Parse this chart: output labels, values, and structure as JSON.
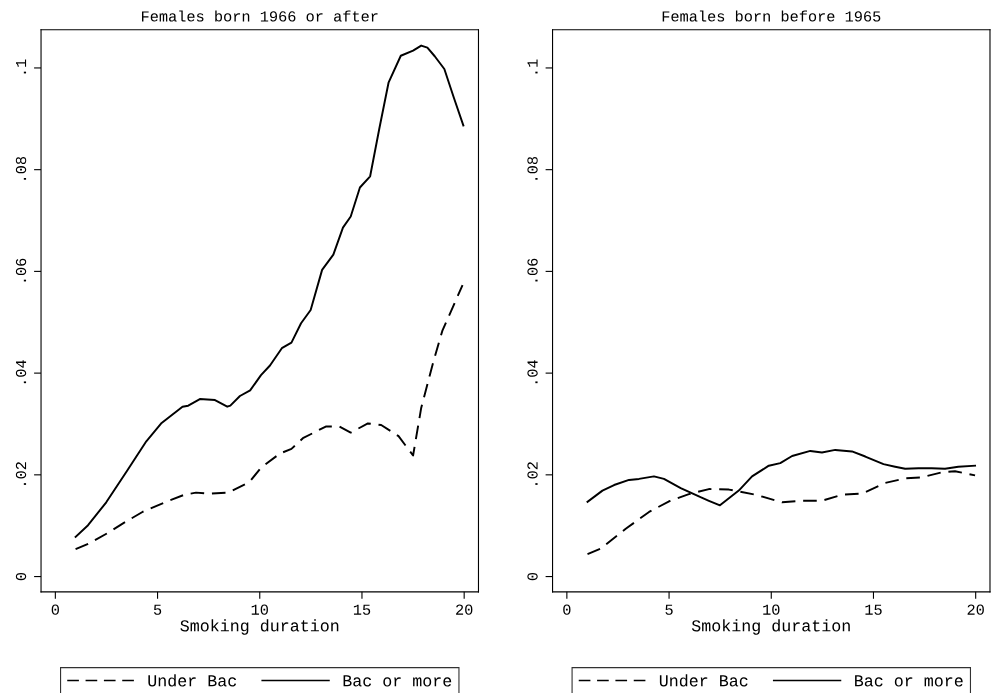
{
  "chart_data": [
    {
      "type": "line",
      "title": "Females born 1966 or after",
      "xlabel": "Smoking duration",
      "xlim": [
        -0.7,
        20.7
      ],
      "ylim": [
        -0.003,
        0.1075
      ],
      "xticks": [
        0,
        5,
        10,
        15,
        20
      ],
      "yticks": [
        {
          "value": 0,
          "label": "0"
        },
        {
          "value": 0.02,
          "label": ".02"
        },
        {
          "value": 0.04,
          "label": ".04"
        },
        {
          "value": 0.06,
          "label": ".06"
        },
        {
          "value": 0.08,
          "label": ".08"
        },
        {
          "value": 0.1,
          "label": ".1"
        }
      ],
      "grid": false,
      "legend": "bottom",
      "marker": "none",
      "series": [
        {
          "name": "Under Bac",
          "color": "#000000",
          "line_style": "dashed",
          "x": [
            0.99,
            1.64,
            2.58,
            3.33,
            4.26,
            5.48,
            6.32,
            6.88,
            7.53,
            8.47,
            9.5,
            10.06,
            10.99,
            11.55,
            12.11,
            13.23,
            13.89,
            14.45,
            15.29,
            15.94,
            16.79,
            17.5,
            17.9,
            18.47,
            18.93,
            19.92
          ],
          "values": [
            0.0054,
            0.0065,
            0.0086,
            0.0105,
            0.0127,
            0.0148,
            0.0161,
            0.0165,
            0.0163,
            0.0165,
            0.0186,
            0.0214,
            0.0242,
            0.0251,
            0.0272,
            0.0295,
            0.0295,
            0.0283,
            0.0301,
            0.0298,
            0.0276,
            0.0238,
            0.0332,
            0.0419,
            0.0483,
            0.0573
          ]
        },
        {
          "name": "Bac or more",
          "color": "#000000",
          "line_style": "solid",
          "x": [
            0.99,
            1.6,
            2.49,
            3.51,
            4.45,
            5.2,
            6.22,
            6.5,
            7.07,
            7.81,
            8.41,
            8.56,
            9.03,
            9.53,
            10.06,
            10.5,
            11.08,
            11.55,
            12.02,
            12.49,
            13.05,
            13.6,
            14.07,
            14.45,
            14.9,
            15.4,
            15.85,
            16.3,
            16.9,
            17.5,
            17.9,
            18.2,
            18.56,
            19.03,
            19.5,
            19.96
          ],
          "values": [
            0.0078,
            0.0101,
            0.0146,
            0.0208,
            0.0266,
            0.0302,
            0.0334,
            0.0336,
            0.0349,
            0.0347,
            0.0334,
            0.0336,
            0.0355,
            0.0366,
            0.0396,
            0.0415,
            0.0449,
            0.046,
            0.0498,
            0.0524,
            0.0603,
            0.0633,
            0.0686,
            0.0708,
            0.0765,
            0.0787,
            0.0881,
            0.0971,
            0.1024,
            0.1034,
            0.1044,
            0.104,
            0.1023,
            0.0998,
            0.0941,
            0.0887
          ]
        }
      ]
    },
    {
      "type": "line",
      "title": "Females born before 1965",
      "xlabel": "Smoking duration",
      "xlim": [
        -0.7,
        20.7
      ],
      "ylim": [
        -0.003,
        0.1075
      ],
      "xticks": [
        0,
        5,
        10,
        15,
        20
      ],
      "yticks": [
        {
          "value": 0,
          "label": "0"
        },
        {
          "value": 0.02,
          "label": ".02"
        },
        {
          "value": 0.04,
          "label": ".04"
        },
        {
          "value": 0.06,
          "label": ".06"
        },
        {
          "value": 0.08,
          "label": ".08"
        },
        {
          "value": 0.1,
          "label": ".1"
        }
      ],
      "grid": false,
      "legend": "bottom",
      "marker": "none",
      "series": [
        {
          "name": "Under Bac",
          "color": "#000000",
          "line_style": "dashed",
          "x": [
            1.01,
            1.66,
            2.88,
            4.02,
            5.0,
            5.97,
            6.95,
            7.93,
            9.23,
            10.53,
            11.5,
            12.48,
            13.46,
            14.43,
            15.57,
            16.55,
            17.36,
            18.34,
            18.99,
            19.97
          ],
          "values": [
            0.0044,
            0.0055,
            0.0094,
            0.0127,
            0.0148,
            0.0162,
            0.0172,
            0.0171,
            0.0161,
            0.0146,
            0.0149,
            0.0149,
            0.0161,
            0.0163,
            0.0184,
            0.0193,
            0.0195,
            0.0205,
            0.0207,
            0.0199
          ]
        },
        {
          "name": "Bac or more",
          "color": "#000000",
          "line_style": "solid",
          "x": [
            1.01,
            1.74,
            2.31,
            3.04,
            3.53,
            4.26,
            4.75,
            5.57,
            6.54,
            6.95,
            7.49,
            8.41,
            9.06,
            9.88,
            10.44,
            11.02,
            11.91,
            12.48,
            13.13,
            13.95,
            14.6,
            15.49,
            16.06,
            16.55,
            17.2,
            17.85,
            18.5,
            19.15,
            19.97
          ],
          "values": [
            0.0147,
            0.0169,
            0.018,
            0.019,
            0.0192,
            0.0197,
            0.0192,
            0.0174,
            0.0156,
            0.0149,
            0.014,
            0.0169,
            0.0197,
            0.0218,
            0.0223,
            0.0237,
            0.0247,
            0.0244,
            0.0249,
            0.0246,
            0.0236,
            0.0221,
            0.0216,
            0.0212,
            0.0213,
            0.0213,
            0.0212,
            0.0216,
            0.0218
          ]
        }
      ]
    }
  ]
}
